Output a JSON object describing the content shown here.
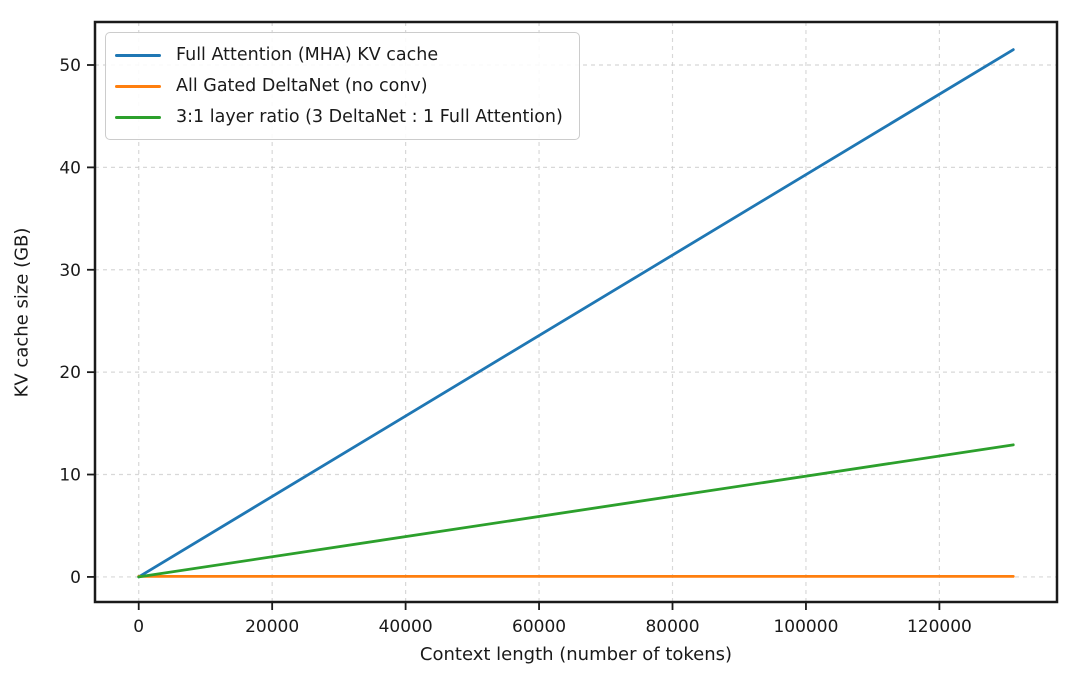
{
  "chart_data": {
    "type": "line",
    "title": "",
    "xlabel": "Context length (number of tokens)",
    "ylabel": "KV cache size (GB)",
    "xlim": [
      -6553,
      137626
    ],
    "ylim": [
      -2.45,
      54.2
    ],
    "xticks": [
      0,
      20000,
      40000,
      60000,
      80000,
      100000,
      120000
    ],
    "yticks": [
      0,
      10,
      20,
      30,
      40,
      50
    ],
    "grid": true,
    "grid_style": "dashed",
    "legend_position": "upper-left",
    "x_max_tokens": 131072,
    "series": [
      {
        "name": "Full Attention (MHA) KV cache",
        "color": "#1f77b4",
        "x": [
          0,
          131072
        ],
        "values": [
          0,
          51.5
        ]
      },
      {
        "name": "All Gated DeltaNet (no conv)",
        "color": "#ff7f0e",
        "x": [
          0,
          131072
        ],
        "values": [
          0.05,
          0.05
        ]
      },
      {
        "name": "3:1 layer ratio (3 DeltaNet : 1 Full Attention)",
        "color": "#2ca02c",
        "x": [
          0,
          131072
        ],
        "values": [
          0,
          12.9
        ]
      }
    ]
  },
  "colors": {
    "background": "#ffffff",
    "spine": "#1a1a1a",
    "grid": "#cccccc",
    "text": "#1a1a1a"
  }
}
